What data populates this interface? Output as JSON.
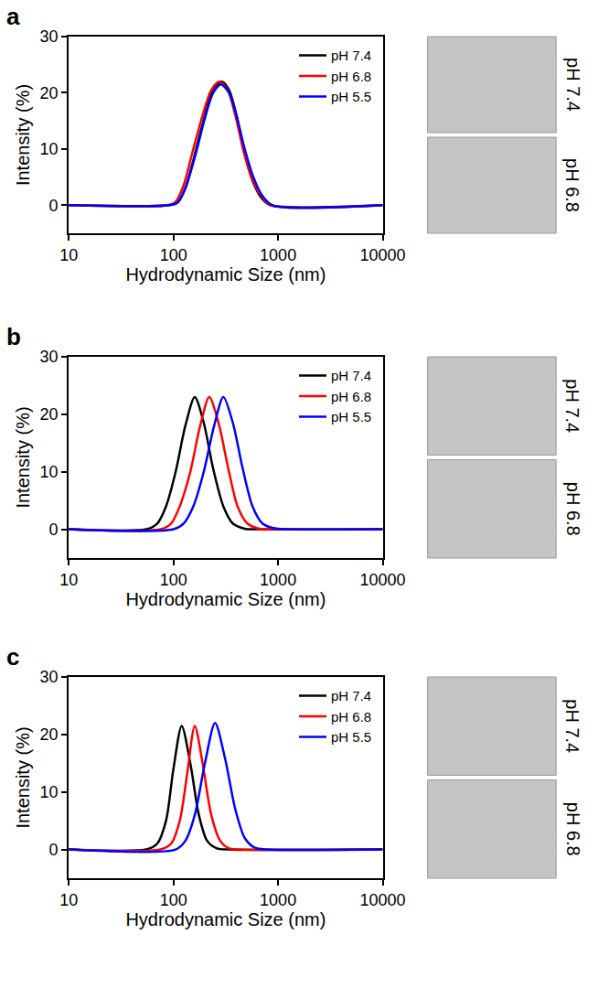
{
  "chart_data": [
    {
      "panel_label": "a",
      "type": "line",
      "x_label": "Hydrodynamic Size (nm)",
      "y_label": "Intensity (%)",
      "log": "x",
      "grid": false,
      "legend": "top right",
      "xlim": [
        10,
        10000
      ],
      "xticks": [
        10,
        100,
        1000,
        10000
      ],
      "ylim": [
        -5,
        30
      ],
      "yticks": [
        0,
        10,
        20,
        30
      ],
      "image_labels": [
        "pH 7.4",
        "pH 6.8"
      ],
      "series": [
        {
          "name": "pH 7.4",
          "color": "#000000",
          "x": [
            10,
            90,
            110,
            130,
            160,
            200,
            240,
            290,
            340,
            400,
            480,
            580,
            700,
            850,
            10000
          ],
          "values": [
            0,
            0,
            0.5,
            3,
            9,
            16,
            20.5,
            22,
            20.5,
            16,
            9,
            4,
            1.2,
            0,
            0
          ]
        },
        {
          "name": "pH 6.8",
          "color": "#ff0000",
          "x": [
            10,
            90,
            105,
            125,
            150,
            190,
            230,
            275,
            330,
            390,
            470,
            570,
            700,
            850,
            10000
          ],
          "values": [
            0,
            0,
            0.6,
            3.5,
            9,
            16,
            20.5,
            22,
            20.5,
            16,
            9.5,
            4.5,
            1.5,
            0,
            0
          ]
        },
        {
          "name": "pH 5.5",
          "color": "#0000ff",
          "x": [
            10,
            90,
            110,
            130,
            160,
            200,
            240,
            285,
            340,
            400,
            480,
            580,
            700,
            880,
            10000
          ],
          "values": [
            0,
            0,
            0.5,
            3,
            8.5,
            15.5,
            20,
            21.5,
            20,
            16,
            10,
            5,
            1.8,
            0,
            0
          ]
        }
      ]
    },
    {
      "panel_label": "b",
      "type": "line",
      "x_label": "Hydrodynamic Size (nm)",
      "y_label": "Intensity (%)",
      "log": "x",
      "grid": false,
      "legend": "top right",
      "xlim": [
        10,
        10000
      ],
      "xticks": [
        10,
        100,
        1000,
        10000
      ],
      "ylim": [
        -5,
        30
      ],
      "yticks": [
        0,
        10,
        20,
        30
      ],
      "image_labels": [
        "pH 7.4",
        "pH 6.8"
      ],
      "series": [
        {
          "name": "pH 7.4",
          "color": "#000000",
          "x": [
            10,
            55,
            70,
            85,
            105,
            130,
            160,
            195,
            240,
            300,
            370,
            480,
            650,
            10000
          ],
          "values": [
            0,
            0,
            1,
            4,
            10,
            18,
            23,
            18.5,
            10.5,
            4,
            1,
            0.1,
            0,
            0
          ]
        },
        {
          "name": "pH 6.8",
          "color": "#ff0000",
          "x": [
            10,
            75,
            95,
            115,
            145,
            180,
            220,
            270,
            335,
            410,
            510,
            660,
            900,
            10000
          ],
          "values": [
            0,
            0,
            1,
            4,
            10,
            18,
            23,
            18.5,
            10.5,
            4,
            1,
            0.1,
            0,
            0
          ]
        },
        {
          "name": "pH 5.5",
          "color": "#0000ff",
          "x": [
            10,
            100,
            125,
            155,
            195,
            245,
            300,
            370,
            460,
            570,
            710,
            900,
            1300,
            10000
          ],
          "values": [
            0,
            0,
            1,
            4,
            10,
            18,
            23,
            18.5,
            10.5,
            4,
            1,
            0.2,
            0,
            0
          ]
        }
      ]
    },
    {
      "panel_label": "c",
      "type": "line",
      "x_label": "Hydrodynamic Size (nm)",
      "y_label": "Intensity (%)",
      "log": "x",
      "grid": false,
      "legend": "top right",
      "xlim": [
        10,
        10000
      ],
      "xticks": [
        10,
        100,
        1000,
        10000
      ],
      "ylim": [
        -5,
        30
      ],
      "yticks": [
        0,
        10,
        20,
        30
      ],
      "image_labels": [
        "pH 7.4",
        "pH 6.8"
      ],
      "series": [
        {
          "name": "pH 7.4",
          "color": "#000000",
          "x": [
            10,
            55,
            70,
            85,
            100,
            120,
            145,
            175,
            210,
            260,
            330,
            10000
          ],
          "values": [
            0,
            0,
            1,
            5,
            14,
            21.5,
            15,
            6,
            1.5,
            0.2,
            0,
            0
          ]
        },
        {
          "name": "pH 6.8",
          "color": "#ff0000",
          "x": [
            10,
            75,
            95,
            115,
            135,
            160,
            190,
            230,
            280,
            340,
            430,
            10000
          ],
          "values": [
            0,
            0,
            1,
            5,
            13,
            21.5,
            15,
            6,
            1.5,
            0.2,
            0,
            0
          ]
        },
        {
          "name": "pH 5.5",
          "color": "#0000ff",
          "x": [
            10,
            105,
            130,
            160,
            200,
            250,
            310,
            390,
            480,
            600,
            800,
            10000
          ],
          "values": [
            0,
            0,
            1.5,
            6,
            15,
            22,
            16,
            7,
            2,
            0.3,
            0,
            0
          ]
        }
      ]
    }
  ]
}
